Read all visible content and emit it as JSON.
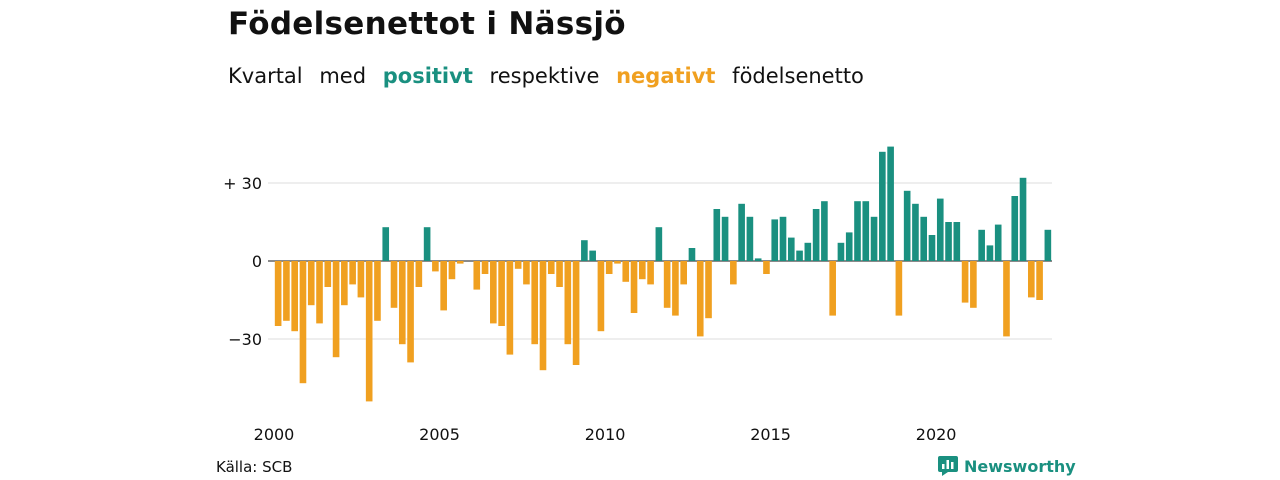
{
  "title": "Födelsenettot i Nässjö",
  "subtitle": {
    "w1": "Kvartal",
    "w2": "med",
    "pos_word": "positivt",
    "w3": "respektive",
    "neg_word": "negativt",
    "w4": "födelsenetto"
  },
  "source": "Källa: SCB",
  "brand": "Newsworthy",
  "colors": {
    "positive": "#1a9080",
    "negative": "#f0a020",
    "grid": "#dddddd"
  },
  "chart_data": {
    "type": "bar",
    "x_start": "2000-Q1",
    "frequency": "quarterly",
    "x_tick_labels": [
      "2000",
      "2005",
      "2010",
      "2015",
      "2020"
    ],
    "y_tick_labels": [
      "+ 30",
      "0",
      "−30"
    ],
    "y_ticks": [
      30,
      0,
      -30
    ],
    "ylim": [
      -56,
      47
    ],
    "grid": true,
    "values": [
      -25,
      -23,
      -27,
      -47,
      -17,
      -24,
      -10,
      -37,
      -17,
      -9,
      -14,
      -54,
      -23,
      13,
      -18,
      -32,
      -39,
      -10,
      13,
      -4,
      -19,
      -7,
      -1,
      0,
      -11,
      -5,
      -24,
      -25,
      -36,
      -3,
      -9,
      -32,
      -42,
      -5,
      -10,
      -32,
      -40,
      8,
      4,
      -27,
      -5,
      -1,
      -8,
      -20,
      -7,
      -9,
      13,
      -18,
      -21,
      -9,
      5,
      -29,
      -22,
      20,
      17,
      -9,
      22,
      17,
      1,
      -5,
      16,
      17,
      9,
      4,
      7,
      20,
      23,
      -21,
      7,
      11,
      23,
      23,
      17,
      42,
      44,
      -21,
      27,
      22,
      17,
      10,
      24,
      15,
      15,
      -16,
      -18,
      12,
      6,
      14,
      -29,
      25,
      32,
      -14,
      -15,
      12
    ]
  }
}
